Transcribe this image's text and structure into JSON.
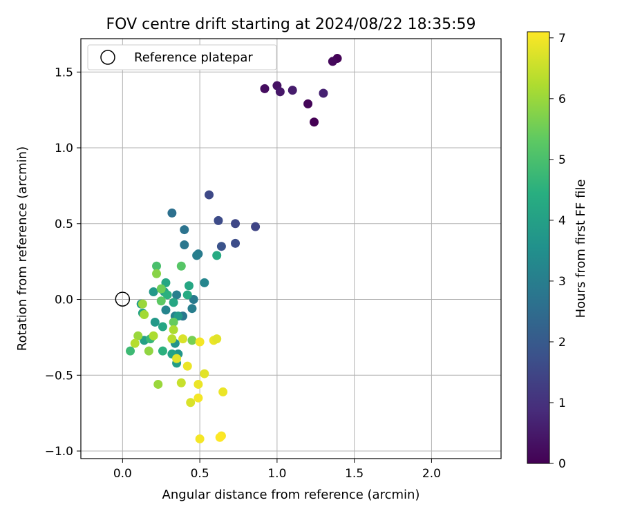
{
  "chart_data": {
    "type": "scatter",
    "title": "FOV centre drift starting at 2024/08/22 18:35:59",
    "xlabel": "Angular distance from reference (arcmin)",
    "ylabel": "Rotation from reference (arcmin)",
    "xlim": [
      -0.27,
      2.45
    ],
    "ylim": [
      -1.05,
      1.72
    ],
    "xticks": [
      0.0,
      0.5,
      1.0,
      1.5,
      2.0
    ],
    "xtick_labels": [
      "0.0",
      "0.5",
      "1.0",
      "1.5",
      "2.0"
    ],
    "yticks": [
      -1.0,
      -0.5,
      0.0,
      0.5,
      1.0,
      1.5
    ],
    "ytick_labels": [
      "−1.0",
      "−0.5",
      "0.0",
      "0.5",
      "1.0",
      "1.5"
    ],
    "grid": true,
    "legend": {
      "placement": "upper-left",
      "entries": [
        "Reference platepar"
      ]
    },
    "reference_point": {
      "x": 0.0,
      "y": 0.0
    },
    "colorbar": {
      "label": "Hours from first FF file",
      "colormap": "viridis",
      "range": [
        0,
        7.1
      ],
      "ticks": [
        0,
        1,
        2,
        3,
        4,
        5,
        6,
        7
      ],
      "tick_labels": [
        "0",
        "1",
        "2",
        "3",
        "4",
        "5",
        "6",
        "7"
      ]
    },
    "points": [
      {
        "x": 1.39,
        "y": 1.59,
        "c": 0.05
      },
      {
        "x": 1.36,
        "y": 1.57,
        "c": 0.15
      },
      {
        "x": 0.92,
        "y": 1.39,
        "c": 0.25
      },
      {
        "x": 1.0,
        "y": 1.41,
        "c": 0.35
      },
      {
        "x": 1.02,
        "y": 1.37,
        "c": 0.45
      },
      {
        "x": 1.1,
        "y": 1.38,
        "c": 0.55
      },
      {
        "x": 1.3,
        "y": 1.36,
        "c": 0.65
      },
      {
        "x": 1.2,
        "y": 1.29,
        "c": 0.1
      },
      {
        "x": 1.24,
        "y": 1.17,
        "c": 0.0
      },
      {
        "x": 0.56,
        "y": 0.69,
        "c": 1.55
      },
      {
        "x": 0.62,
        "y": 0.52,
        "c": 1.6
      },
      {
        "x": 0.73,
        "y": 0.5,
        "c": 1.5
      },
      {
        "x": 0.86,
        "y": 0.48,
        "c": 1.45
      },
      {
        "x": 0.73,
        "y": 0.37,
        "c": 1.65
      },
      {
        "x": 0.64,
        "y": 0.35,
        "c": 1.8
      },
      {
        "x": 0.32,
        "y": 0.57,
        "c": 2.6
      },
      {
        "x": 0.4,
        "y": 0.46,
        "c": 2.7
      },
      {
        "x": 0.4,
        "y": 0.36,
        "c": 2.8
      },
      {
        "x": 0.49,
        "y": 0.3,
        "c": 2.9
      },
      {
        "x": 0.48,
        "y": 0.29,
        "c": 3.0
      },
      {
        "x": 0.53,
        "y": 0.11,
        "c": 3.2
      },
      {
        "x": 0.46,
        "y": 0.0,
        "c": 2.9
      },
      {
        "x": 0.45,
        "y": -0.06,
        "c": 3.0
      },
      {
        "x": 0.39,
        "y": -0.11,
        "c": 2.8
      },
      {
        "x": 0.34,
        "y": -0.11,
        "c": 3.1
      },
      {
        "x": 0.35,
        "y": 0.03,
        "c": 3.0
      },
      {
        "x": 0.28,
        "y": -0.07,
        "c": 3.2
      },
      {
        "x": 0.61,
        "y": 0.29,
        "c": 4.3
      },
      {
        "x": 0.43,
        "y": 0.09,
        "c": 4.2
      },
      {
        "x": 0.42,
        "y": 0.03,
        "c": 4.3
      },
      {
        "x": 0.28,
        "y": 0.11,
        "c": 4.2
      },
      {
        "x": 0.27,
        "y": 0.05,
        "c": 4.0
      },
      {
        "x": 0.29,
        "y": 0.03,
        "c": 4.5
      },
      {
        "x": 0.2,
        "y": 0.05,
        "c": 3.8
      },
      {
        "x": 0.33,
        "y": -0.02,
        "c": 4.2
      },
      {
        "x": 0.36,
        "y": -0.11,
        "c": 3.8
      },
      {
        "x": 0.34,
        "y": -0.29,
        "c": 3.6
      },
      {
        "x": 0.36,
        "y": -0.36,
        "c": 3.7
      },
      {
        "x": 0.35,
        "y": -0.42,
        "c": 3.9
      },
      {
        "x": 0.32,
        "y": -0.36,
        "c": 4.1
      },
      {
        "x": 0.26,
        "y": -0.34,
        "c": 4.5
      },
      {
        "x": 0.21,
        "y": -0.15,
        "c": 3.8
      },
      {
        "x": 0.26,
        "y": -0.18,
        "c": 4.2
      },
      {
        "x": 0.12,
        "y": -0.03,
        "c": 3.9
      },
      {
        "x": 0.13,
        "y": -0.09,
        "c": 4.1
      },
      {
        "x": 0.14,
        "y": -0.27,
        "c": 4.0
      },
      {
        "x": 0.18,
        "y": -0.26,
        "c": 4.7
      },
      {
        "x": 0.05,
        "y": -0.34,
        "c": 4.8
      },
      {
        "x": 0.22,
        "y": 0.22,
        "c": 5.0
      },
      {
        "x": 0.38,
        "y": 0.22,
        "c": 5.2
      },
      {
        "x": 0.25,
        "y": 0.07,
        "c": 5.5
      },
      {
        "x": 0.25,
        "y": -0.01,
        "c": 5.3
      },
      {
        "x": 0.33,
        "y": -0.15,
        "c": 5.4
      },
      {
        "x": 0.22,
        "y": 0.17,
        "c": 5.8
      },
      {
        "x": 0.13,
        "y": -0.03,
        "c": 6.0
      },
      {
        "x": 0.14,
        "y": -0.1,
        "c": 6.1
      },
      {
        "x": 0.1,
        "y": -0.24,
        "c": 6.0
      },
      {
        "x": 0.08,
        "y": -0.29,
        "c": 6.3
      },
      {
        "x": 0.2,
        "y": -0.24,
        "c": 6.2
      },
      {
        "x": 0.17,
        "y": -0.34,
        "c": 5.9
      },
      {
        "x": 0.32,
        "y": -0.26,
        "c": 6.3
      },
      {
        "x": 0.33,
        "y": -0.2,
        "c": 6.2
      },
      {
        "x": 0.23,
        "y": -0.56,
        "c": 6.0
      },
      {
        "x": 0.45,
        "y": -0.27,
        "c": 5.6
      },
      {
        "x": 0.38,
        "y": -0.55,
        "c": 6.5
      },
      {
        "x": 0.39,
        "y": -0.26,
        "c": 6.7
      },
      {
        "x": 0.5,
        "y": -0.28,
        "c": 7.0
      },
      {
        "x": 0.59,
        "y": -0.27,
        "c": 6.9
      },
      {
        "x": 0.61,
        "y": -0.26,
        "c": 6.8
      },
      {
        "x": 0.35,
        "y": -0.39,
        "c": 6.8
      },
      {
        "x": 0.42,
        "y": -0.44,
        "c": 6.9
      },
      {
        "x": 0.53,
        "y": -0.49,
        "c": 6.8
      },
      {
        "x": 0.49,
        "y": -0.56,
        "c": 6.9
      },
      {
        "x": 0.44,
        "y": -0.68,
        "c": 6.7
      },
      {
        "x": 0.49,
        "y": -0.65,
        "c": 7.0
      },
      {
        "x": 0.65,
        "y": -0.61,
        "c": 6.9
      },
      {
        "x": 0.5,
        "y": -0.92,
        "c": 7.0
      },
      {
        "x": 0.64,
        "y": -0.9,
        "c": 7.05
      },
      {
        "x": 0.63,
        "y": -0.91,
        "c": 7.1
      }
    ]
  }
}
